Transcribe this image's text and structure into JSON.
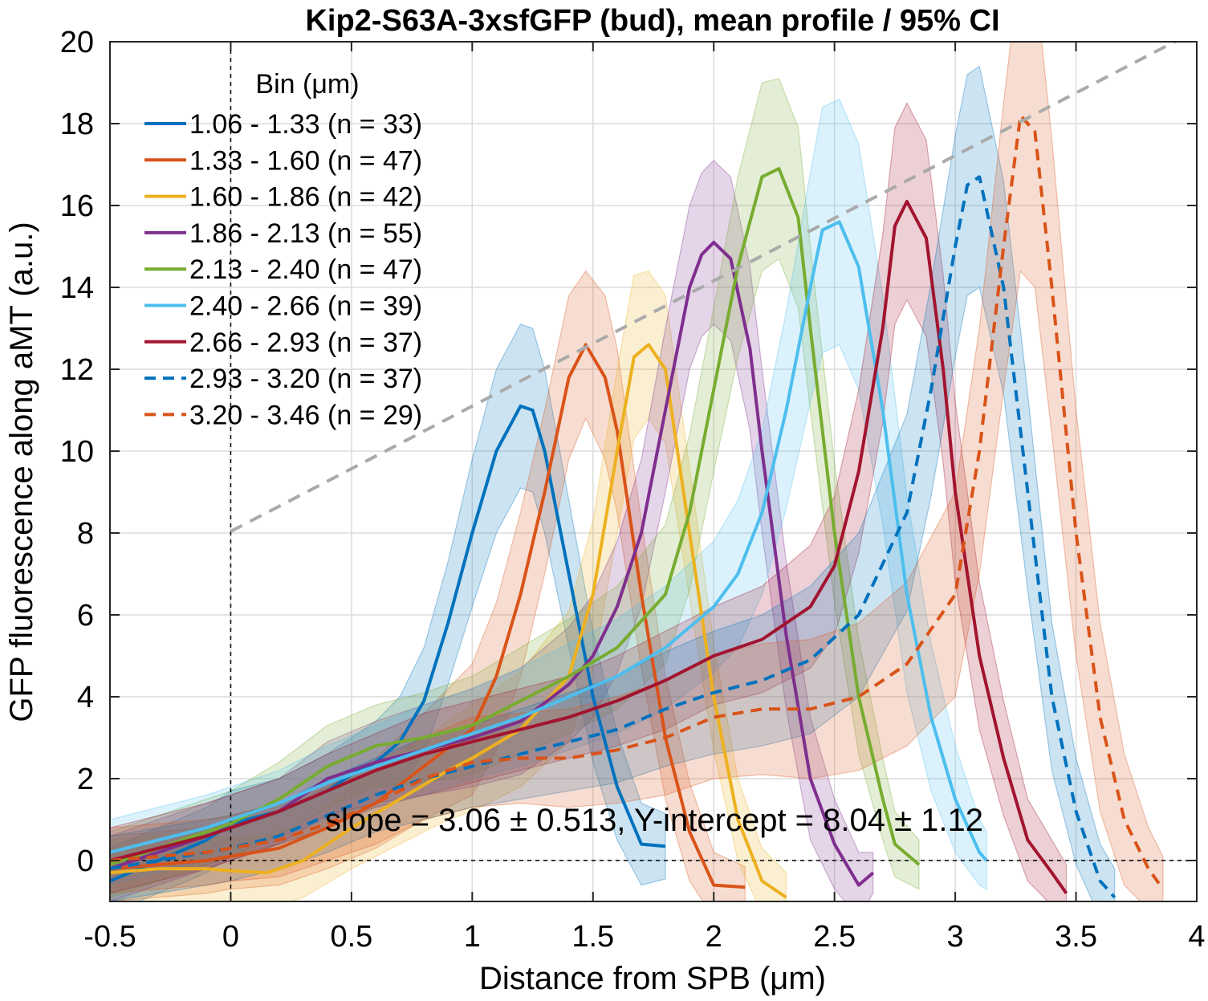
{
  "chart_data": {
    "type": "line",
    "title": "Kip2-S63A-3xsfGFP (bud), mean profile / 95% CI",
    "xlabel": "Distance from SPB (μm)",
    "ylabel": "GFP fluorescence along aMT (a.u.)",
    "xlim": [
      -0.5,
      4
    ],
    "ylim": [
      -1,
      20
    ],
    "xticks": [
      "-0.5",
      "0",
      "0.5",
      "1",
      "1.5",
      "2",
      "2.5",
      "3",
      "3.5",
      "4"
    ],
    "yticks": [
      "0",
      "2",
      "4",
      "6",
      "8",
      "10",
      "12",
      "14",
      "16",
      "18",
      "20"
    ],
    "grid": true,
    "legend_title": "Bin (μm)",
    "legend_position": "top-left",
    "annotation": "slope = 3.06 ± 0.513, Y-intercept = 8.04 ± 1.12",
    "fit_line": {
      "slope": 3.06,
      "intercept": 8.04,
      "x": [
        0,
        4
      ],
      "color": "#aaaaaa",
      "style": "dashed"
    },
    "reference_lines": {
      "x": 0,
      "y": 0
    },
    "series": [
      {
        "name": "1.06 - 1.33 (n =  33)",
        "color": "#0072BD",
        "dash": false,
        "x": [
          -0.5,
          -0.3,
          -0.1,
          0.0,
          0.2,
          0.4,
          0.5,
          0.6,
          0.7,
          0.8,
          0.9,
          1.0,
          1.1,
          1.2,
          1.25,
          1.3,
          1.4,
          1.5,
          1.6,
          1.7,
          1.8
        ],
        "y": [
          -0.5,
          0.0,
          0.5,
          0.9,
          1.2,
          1.7,
          2.1,
          2.4,
          2.9,
          3.9,
          5.8,
          8.0,
          10.0,
          11.1,
          11.0,
          10.0,
          7.0,
          4.0,
          1.8,
          0.4,
          0.35
        ],
        "ci_half": [
          0.8,
          0.8,
          0.8,
          0.8,
          0.8,
          0.9,
          0.9,
          1.0,
          1.1,
          1.3,
          1.5,
          1.8,
          2.0,
          2.0,
          2.0,
          2.0,
          1.8,
          1.6,
          1.3,
          1.0,
          0.8
        ]
      },
      {
        "name": "1.33 - 1.60 (n =  47)",
        "color": "#D95319",
        "dash": false,
        "x": [
          -0.5,
          -0.3,
          -0.1,
          0.0,
          0.2,
          0.4,
          0.6,
          0.8,
          1.0,
          1.1,
          1.2,
          1.3,
          1.4,
          1.47,
          1.55,
          1.6,
          1.7,
          1.8,
          1.9,
          2.0,
          2.13
        ],
        "y": [
          -0.2,
          -0.1,
          0.0,
          0.1,
          0.3,
          0.8,
          1.4,
          2.3,
          3.2,
          4.5,
          6.5,
          9.0,
          11.8,
          12.6,
          11.8,
          10.5,
          6.5,
          3.0,
          0.7,
          -0.6,
          -0.65
        ],
        "ci_half": [
          0.8,
          0.8,
          0.8,
          0.8,
          0.9,
          1.0,
          1.1,
          1.3,
          1.6,
          1.8,
          2.0,
          2.0,
          2.0,
          1.8,
          2.0,
          2.0,
          1.8,
          1.5,
          1.2,
          0.8,
          0.5
        ]
      },
      {
        "name": "1.60 - 1.86 (n =  42)",
        "color": "#EDB120",
        "dash": false,
        "x": [
          -0.5,
          -0.3,
          -0.1,
          0.0,
          0.15,
          0.3,
          0.5,
          0.7,
          0.9,
          1.0,
          1.2,
          1.4,
          1.5,
          1.6,
          1.67,
          1.73,
          1.8,
          1.9,
          2.0,
          2.1,
          2.2,
          2.3
        ],
        "y": [
          -0.3,
          -0.2,
          -0.2,
          -0.25,
          -0.3,
          0.0,
          0.8,
          1.5,
          2.2,
          2.5,
          3.2,
          4.5,
          6.5,
          10.0,
          12.3,
          12.6,
          12.0,
          8.0,
          4.0,
          1.0,
          -0.5,
          -0.9
        ],
        "ci_half": [
          0.8,
          0.8,
          0.8,
          0.8,
          0.9,
          0.9,
          1.0,
          1.1,
          1.2,
          1.3,
          1.4,
          1.6,
          1.8,
          2.0,
          2.0,
          1.8,
          1.8,
          1.6,
          1.3,
          1.0,
          0.8,
          0.6
        ]
      },
      {
        "name": "1.86 - 2.13 (n =  55)",
        "color": "#7E2F8E",
        "dash": false,
        "x": [
          -0.5,
          -0.3,
          -0.1,
          0.0,
          0.2,
          0.4,
          0.6,
          0.8,
          1.0,
          1.2,
          1.4,
          1.5,
          1.6,
          1.7,
          1.8,
          1.9,
          1.95,
          2.0,
          2.07,
          2.15,
          2.2,
          2.3,
          2.4,
          2.5,
          2.6,
          2.66
        ],
        "y": [
          -0.2,
          0.2,
          0.6,
          0.8,
          1.2,
          2.0,
          2.4,
          2.7,
          3.0,
          3.4,
          4.3,
          5.0,
          6.2,
          8.0,
          11.0,
          14.0,
          14.8,
          15.1,
          14.7,
          12.5,
          10.0,
          5.5,
          2.0,
          0.4,
          -0.6,
          -0.3
        ],
        "ci_half": [
          0.8,
          0.8,
          0.8,
          0.8,
          0.8,
          0.9,
          1.0,
          1.1,
          1.2,
          1.3,
          1.4,
          1.5,
          1.6,
          1.8,
          2.0,
          2.0,
          2.0,
          2.0,
          2.0,
          2.0,
          2.0,
          1.8,
          1.5,
          1.1,
          0.8,
          0.5
        ]
      },
      {
        "name": "2.13 - 2.40 (n =  47)",
        "color": "#77AC30",
        "dash": false,
        "x": [
          -0.5,
          -0.3,
          -0.1,
          0.0,
          0.2,
          0.4,
          0.6,
          0.8,
          1.0,
          1.2,
          1.4,
          1.6,
          1.8,
          1.9,
          2.0,
          2.1,
          2.2,
          2.27,
          2.35,
          2.4,
          2.5,
          2.6,
          2.7,
          2.75,
          2.85
        ],
        "y": [
          -0.1,
          0.3,
          0.7,
          0.9,
          1.5,
          2.3,
          2.8,
          3.0,
          3.3,
          3.9,
          4.5,
          5.2,
          6.5,
          8.5,
          11.5,
          14.5,
          16.7,
          16.9,
          15.7,
          13.0,
          8.0,
          4.0,
          1.5,
          0.4,
          -0.1
        ],
        "ci_half": [
          0.8,
          0.8,
          0.8,
          0.8,
          0.9,
          1.0,
          1.0,
          1.1,
          1.2,
          1.3,
          1.4,
          1.5,
          1.7,
          1.9,
          2.0,
          2.2,
          2.3,
          2.2,
          2.2,
          2.0,
          1.7,
          1.4,
          1.0,
          0.8,
          0.6
        ]
      },
      {
        "name": "2.40 - 2.66 (n =  39)",
        "color": "#4DBEEE",
        "dash": false,
        "x": [
          -0.5,
          -0.3,
          -0.1,
          0.0,
          0.2,
          0.4,
          0.6,
          0.8,
          1.0,
          1.2,
          1.4,
          1.6,
          1.8,
          2.0,
          2.1,
          2.2,
          2.3,
          2.4,
          2.45,
          2.52,
          2.6,
          2.7,
          2.8,
          2.9,
          3.0,
          3.1,
          3.13
        ],
        "y": [
          0.2,
          0.5,
          0.8,
          1.0,
          1.4,
          1.9,
          2.3,
          2.7,
          3.1,
          3.5,
          4.0,
          4.5,
          5.2,
          6.2,
          7.0,
          8.5,
          11.0,
          14.0,
          15.4,
          15.6,
          14.5,
          11.0,
          6.5,
          3.5,
          1.5,
          0.2,
          0.0
        ],
        "ci_half": [
          0.8,
          0.8,
          0.8,
          0.8,
          0.8,
          0.9,
          1.0,
          1.1,
          1.1,
          1.2,
          1.3,
          1.4,
          1.5,
          1.6,
          1.8,
          2.0,
          2.4,
          2.8,
          3.0,
          3.0,
          3.0,
          2.8,
          2.4,
          1.8,
          1.3,
          0.8,
          0.7
        ]
      },
      {
        "name": "2.66 - 2.93 (n =  37)",
        "color": "#A2142F",
        "dash": false,
        "x": [
          -0.5,
          -0.3,
          -0.1,
          0.0,
          0.2,
          0.4,
          0.6,
          0.8,
          1.0,
          1.2,
          1.4,
          1.6,
          1.8,
          2.0,
          2.2,
          2.4,
          2.5,
          2.6,
          2.7,
          2.75,
          2.8,
          2.88,
          2.95,
          3.0,
          3.1,
          3.2,
          3.3,
          3.4,
          3.46
        ],
        "y": [
          0.0,
          0.3,
          0.6,
          0.8,
          1.2,
          1.7,
          2.2,
          2.6,
          2.9,
          3.2,
          3.5,
          3.9,
          4.4,
          5.0,
          5.4,
          6.2,
          7.2,
          9.5,
          13.0,
          15.5,
          16.1,
          15.2,
          12.0,
          9.0,
          5.0,
          2.5,
          0.5,
          -0.3,
          -0.8
        ],
        "ci_half": [
          0.8,
          0.8,
          0.8,
          0.8,
          0.8,
          0.9,
          0.9,
          1.0,
          1.0,
          1.0,
          1.0,
          1.1,
          1.2,
          1.2,
          1.3,
          1.5,
          1.7,
          2.0,
          2.3,
          2.4,
          2.4,
          2.4,
          2.3,
          2.2,
          1.8,
          1.4,
          1.0,
          0.8,
          0.7
        ]
      },
      {
        "name": "2.93 - 3.20 (n =  37)",
        "color": "#0072BD",
        "dash": true,
        "x": [
          -0.5,
          -0.3,
          -0.1,
          0.0,
          0.2,
          0.4,
          0.6,
          0.8,
          1.0,
          1.2,
          1.4,
          1.6,
          1.8,
          2.0,
          2.2,
          2.4,
          2.6,
          2.8,
          2.9,
          3.0,
          3.05,
          3.1,
          3.2,
          3.3,
          3.4,
          3.5,
          3.6,
          3.66
        ],
        "y": [
          -0.2,
          0.0,
          0.2,
          0.3,
          0.6,
          1.1,
          1.6,
          2.0,
          2.3,
          2.6,
          2.9,
          3.2,
          3.7,
          4.1,
          4.4,
          4.9,
          6.0,
          8.5,
          11.5,
          15.0,
          16.5,
          16.7,
          14.0,
          9.0,
          4.0,
          1.2,
          -0.5,
          -0.9
        ],
        "ci_half": [
          0.8,
          0.8,
          0.8,
          0.8,
          0.8,
          0.9,
          0.9,
          1.0,
          1.0,
          1.1,
          1.2,
          1.3,
          1.4,
          1.5,
          1.6,
          1.8,
          2.0,
          2.4,
          2.6,
          2.7,
          2.7,
          2.7,
          2.6,
          2.4,
          1.8,
          1.3,
          0.9,
          0.7
        ]
      },
      {
        "name": "3.20 - 3.46 (n =  29)",
        "color": "#D95319",
        "dash": true,
        "x": [
          -0.5,
          -0.3,
          -0.1,
          0.0,
          0.2,
          0.4,
          0.6,
          0.8,
          1.0,
          1.2,
          1.4,
          1.6,
          1.8,
          2.0,
          2.2,
          2.4,
          2.6,
          2.8,
          3.0,
          3.1,
          3.2,
          3.27,
          3.33,
          3.4,
          3.5,
          3.6,
          3.7,
          3.8,
          3.86
        ],
        "y": [
          0.0,
          0.1,
          0.2,
          0.3,
          0.5,
          0.9,
          1.4,
          2.0,
          2.4,
          2.5,
          2.5,
          2.7,
          3.0,
          3.5,
          3.7,
          3.7,
          4.0,
          4.8,
          6.5,
          10.0,
          15.0,
          18.2,
          17.8,
          14.0,
          8.0,
          3.5,
          1.0,
          -0.2,
          -0.7
        ],
        "ci_half": [
          0.8,
          0.8,
          0.8,
          0.8,
          0.9,
          0.9,
          1.0,
          1.0,
          1.1,
          1.1,
          1.2,
          1.3,
          1.4,
          1.5,
          1.6,
          1.7,
          1.8,
          2.0,
          2.5,
          3.0,
          3.5,
          3.8,
          3.8,
          3.6,
          3.0,
          2.3,
          1.6,
          1.0,
          0.8
        ]
      }
    ]
  }
}
